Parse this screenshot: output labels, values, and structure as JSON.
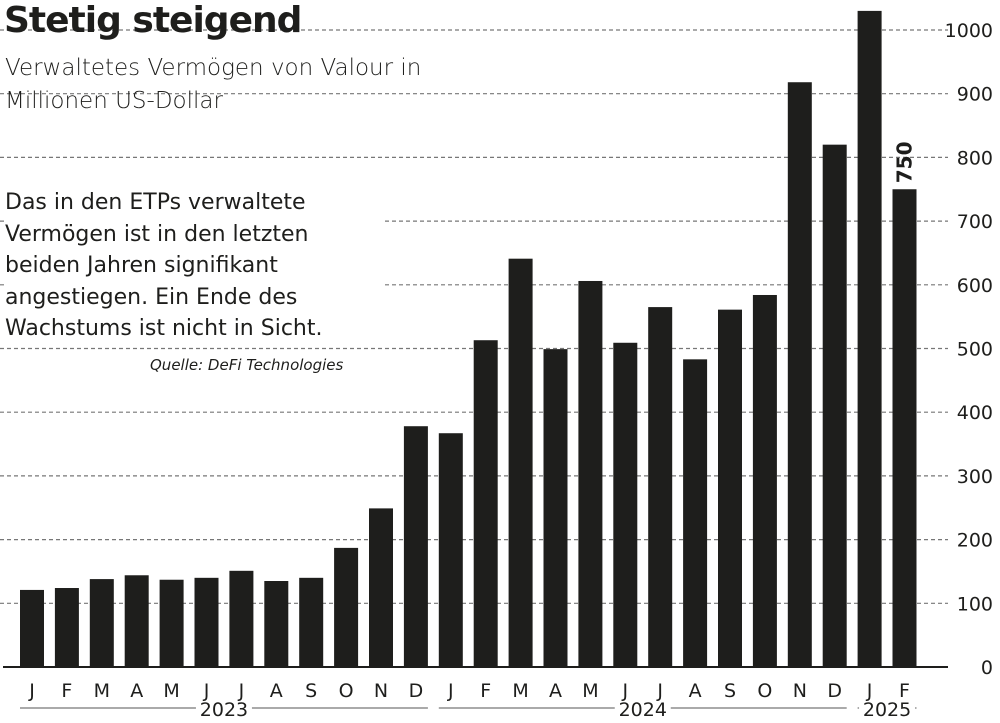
{
  "header": {
    "title": "Stetig steigend",
    "subtitle": "Verwaltetes Vermögen von Valour in Millionen US-Dollar"
  },
  "annotation": {
    "text": "Das in den ETPs verwaltete Vermögen ist in den letzten beiden Jahren signifikant angestiegen. Ein Ende des Wachstums ist nicht in Sicht.",
    "source": "Quelle: DeFi Technologies"
  },
  "chart_data": {
    "type": "bar",
    "title": "Stetig steigend",
    "subtitle": "Verwaltetes Vermögen von Valour in Millionen US-Dollar",
    "categories": [
      "J",
      "F",
      "M",
      "A",
      "M",
      "J",
      "J",
      "A",
      "S",
      "O",
      "N",
      "D",
      "J",
      "F",
      "M",
      "A",
      "M",
      "J",
      "J",
      "A",
      "S",
      "O",
      "N",
      "D",
      "J",
      "F"
    ],
    "years": [
      {
        "label": "2023",
        "months": 12
      },
      {
        "label": "2024",
        "months": 12
      },
      {
        "label": "2025",
        "months": 2
      }
    ],
    "values": [
      121,
      124,
      138,
      144,
      137,
      140,
      151,
      135,
      140,
      187,
      249,
      378,
      367,
      513,
      641,
      499,
      606,
      509,
      565,
      483,
      561,
      584,
      918,
      820,
      1030,
      750
    ],
    "data_labels": [
      {
        "index": 25,
        "text": "750"
      }
    ],
    "yticks": [
      0,
      100,
      200,
      300,
      400,
      500,
      600,
      700,
      800,
      900,
      1000
    ],
    "ylim": [
      0,
      1030
    ],
    "grid": true,
    "grid_style": "dashed",
    "y_axis_position": "right",
    "bar_color": "#1e1e1c",
    "grid_color": "#777777"
  }
}
